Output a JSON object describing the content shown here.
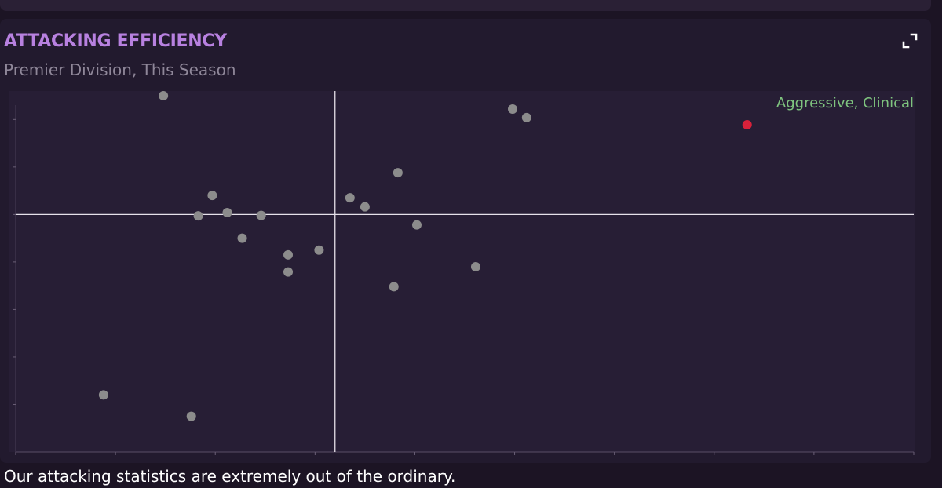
{
  "widget": {
    "title": "ATTACKING EFFICIENCY",
    "subtitle": "Premier Division, This Season",
    "expand_icon": "expand-icon",
    "caption": "Our attacking statistics are extremely out of the ordinary."
  },
  "chart_data": {
    "type": "scatter",
    "title": "ATTACKING EFFICIENCY",
    "subtitle": "Premier Division, This Season",
    "xlabel": "",
    "ylabel": "",
    "xlim": [
      0,
      9
    ],
    "ylim": [
      0,
      7.6
    ],
    "x_ticks": [
      0,
      1,
      2,
      3,
      4,
      5,
      6,
      7,
      8,
      9
    ],
    "y_ticks": [
      0,
      1,
      2,
      3,
      4,
      5,
      6,
      7
    ],
    "x_ref": 3.2,
    "y_ref": 5.0,
    "grid": false,
    "quadrant_label": "Aggressive, Clinical",
    "quadrant_label_color": "#7fc47f",
    "point_color": "#8c8c8c",
    "highlight_color": "#d9213a",
    "series": [
      {
        "values": [
          {
            "x": 1.48,
            "y": 7.5
          },
          {
            "x": 0.88,
            "y": 1.2
          },
          {
            "x": 1.76,
            "y": 0.75
          },
          {
            "x": 1.97,
            "y": 5.4
          },
          {
            "x": 1.83,
            "y": 4.97
          },
          {
            "x": 2.12,
            "y": 5.04
          },
          {
            "x": 2.46,
            "y": 4.98
          },
          {
            "x": 2.27,
            "y": 4.5
          },
          {
            "x": 2.73,
            "y": 4.15
          },
          {
            "x": 2.73,
            "y": 3.79
          },
          {
            "x": 3.04,
            "y": 4.25
          },
          {
            "x": 3.35,
            "y": 5.35
          },
          {
            "x": 3.5,
            "y": 5.16
          },
          {
            "x": 3.83,
            "y": 5.88
          },
          {
            "x": 4.02,
            "y": 4.78
          },
          {
            "x": 3.79,
            "y": 3.48
          },
          {
            "x": 4.61,
            "y": 3.9
          },
          {
            "x": 4.98,
            "y": 7.22
          },
          {
            "x": 5.12,
            "y": 7.04
          }
        ]
      },
      {
        "highlight": true,
        "values": [
          {
            "x": 7.33,
            "y": 6.89
          }
        ]
      }
    ]
  }
}
